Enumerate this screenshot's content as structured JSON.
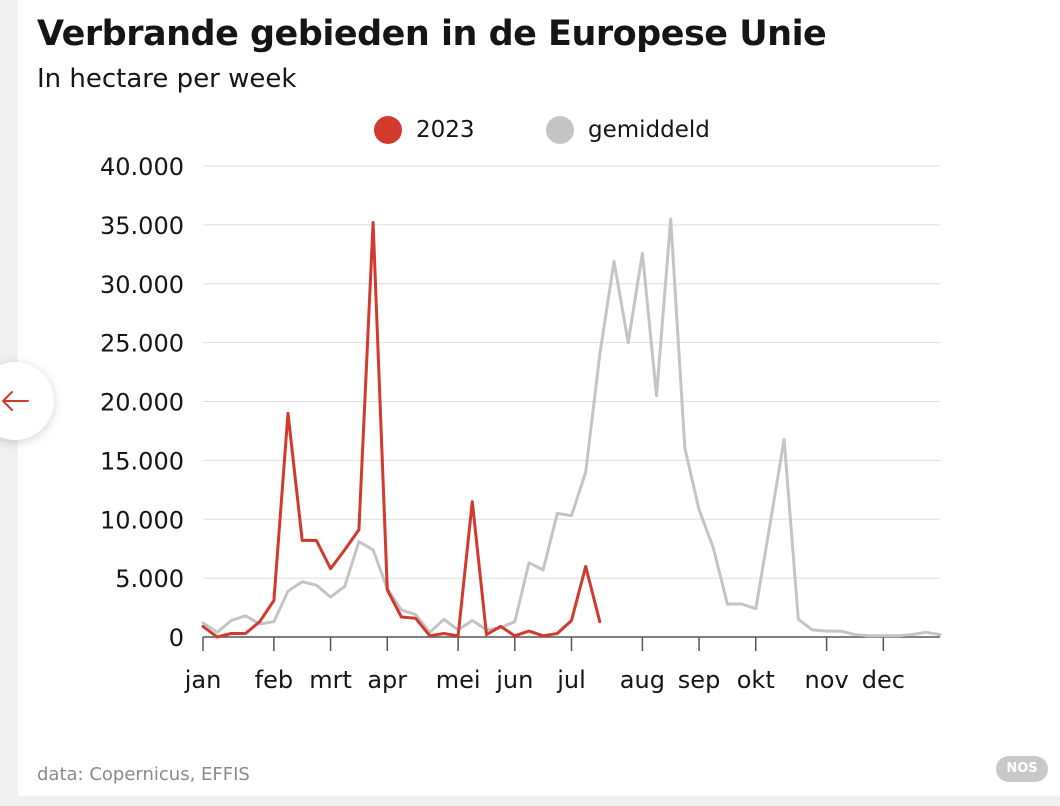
{
  "header": {
    "title": "Verbrande gebieden in de Europese Unie",
    "subtitle": "In hectare per week"
  },
  "legend": {
    "items": [
      {
        "label": "2023",
        "color": "#d13a2c"
      },
      {
        "label": "gemiddeld",
        "color": "#c4c4c4"
      }
    ]
  },
  "footer": {
    "source": "data: Copernicus, EFFIS",
    "badge": "NOS"
  },
  "nav": {
    "prev_icon": "arrow-left-icon",
    "icon_color": "#d13a2c"
  },
  "chart_data": {
    "type": "line",
    "title": "Verbrande gebieden in de Europese Unie",
    "subtitle": "In hectare per week",
    "x_label_type": "week",
    "ylim": [
      0,
      40000
    ],
    "yticks": [
      0,
      5000,
      10000,
      15000,
      20000,
      25000,
      30000,
      35000,
      40000
    ],
    "ytick_labels": [
      "0",
      "5.000",
      "10.000",
      "15.000",
      "20.000",
      "25.000",
      "30.000",
      "35.000",
      "40.000"
    ],
    "xlim": [
      1,
      53
    ],
    "month_ticks": [
      {
        "label": "jan",
        "week": 1
      },
      {
        "label": "feb",
        "week": 6
      },
      {
        "label": "mrt",
        "week": 10
      },
      {
        "label": "apr",
        "week": 14
      },
      {
        "label": "mei",
        "week": 19
      },
      {
        "label": "jun",
        "week": 23
      },
      {
        "label": "jul",
        "week": 27
      },
      {
        "label": "aug",
        "week": 32
      },
      {
        "label": "sep",
        "week": 36
      },
      {
        "label": "okt",
        "week": 40
      },
      {
        "label": "nov",
        "week": 45
      },
      {
        "label": "dec",
        "week": 49
      }
    ],
    "grid": true,
    "legend_position": "top",
    "series": [
      {
        "name": "gemiddeld",
        "color": "#c4c4c4",
        "weeks": [
          1,
          2,
          3,
          4,
          5,
          6,
          7,
          8,
          9,
          10,
          11,
          12,
          13,
          14,
          15,
          16,
          17,
          18,
          19,
          20,
          21,
          22,
          23,
          24,
          25,
          26,
          27,
          28,
          29,
          30,
          31,
          32,
          33,
          34,
          35,
          36,
          37,
          38,
          39,
          40,
          41,
          42,
          43,
          44,
          45,
          46,
          47,
          48,
          49,
          50,
          51,
          52,
          53
        ],
        "values": [
          1200,
          400,
          1400,
          1800,
          1100,
          1300,
          3900,
          4700,
          4400,
          3400,
          4300,
          8100,
          7400,
          4100,
          2300,
          1900,
          400,
          1500,
          600,
          1400,
          600,
          800,
          1300,
          6300,
          5700,
          10500,
          10300,
          14000,
          24000,
          31900,
          25000,
          32600,
          20500,
          35500,
          16000,
          10800,
          7600,
          2800,
          2800,
          2400,
          9500,
          16800,
          1500,
          600,
          500,
          500,
          200,
          100,
          100,
          100,
          200,
          400,
          200
        ]
      },
      {
        "name": "2023",
        "color": "#d13a2c",
        "weeks": [
          1,
          2,
          3,
          4,
          5,
          6,
          7,
          8,
          9,
          10,
          11,
          12,
          13,
          14,
          15,
          16,
          17,
          18,
          19,
          20,
          21,
          22,
          23,
          24,
          25,
          26,
          27,
          28,
          29
        ],
        "values": [
          900,
          0,
          300,
          300,
          1300,
          3100,
          19000,
          8200,
          8200,
          5800,
          7400,
          9100,
          35200,
          4000,
          1700,
          1600,
          100,
          300,
          100,
          11500,
          200,
          900,
          100,
          500,
          100,
          300,
          1400,
          6000,
          1300
        ]
      }
    ]
  }
}
